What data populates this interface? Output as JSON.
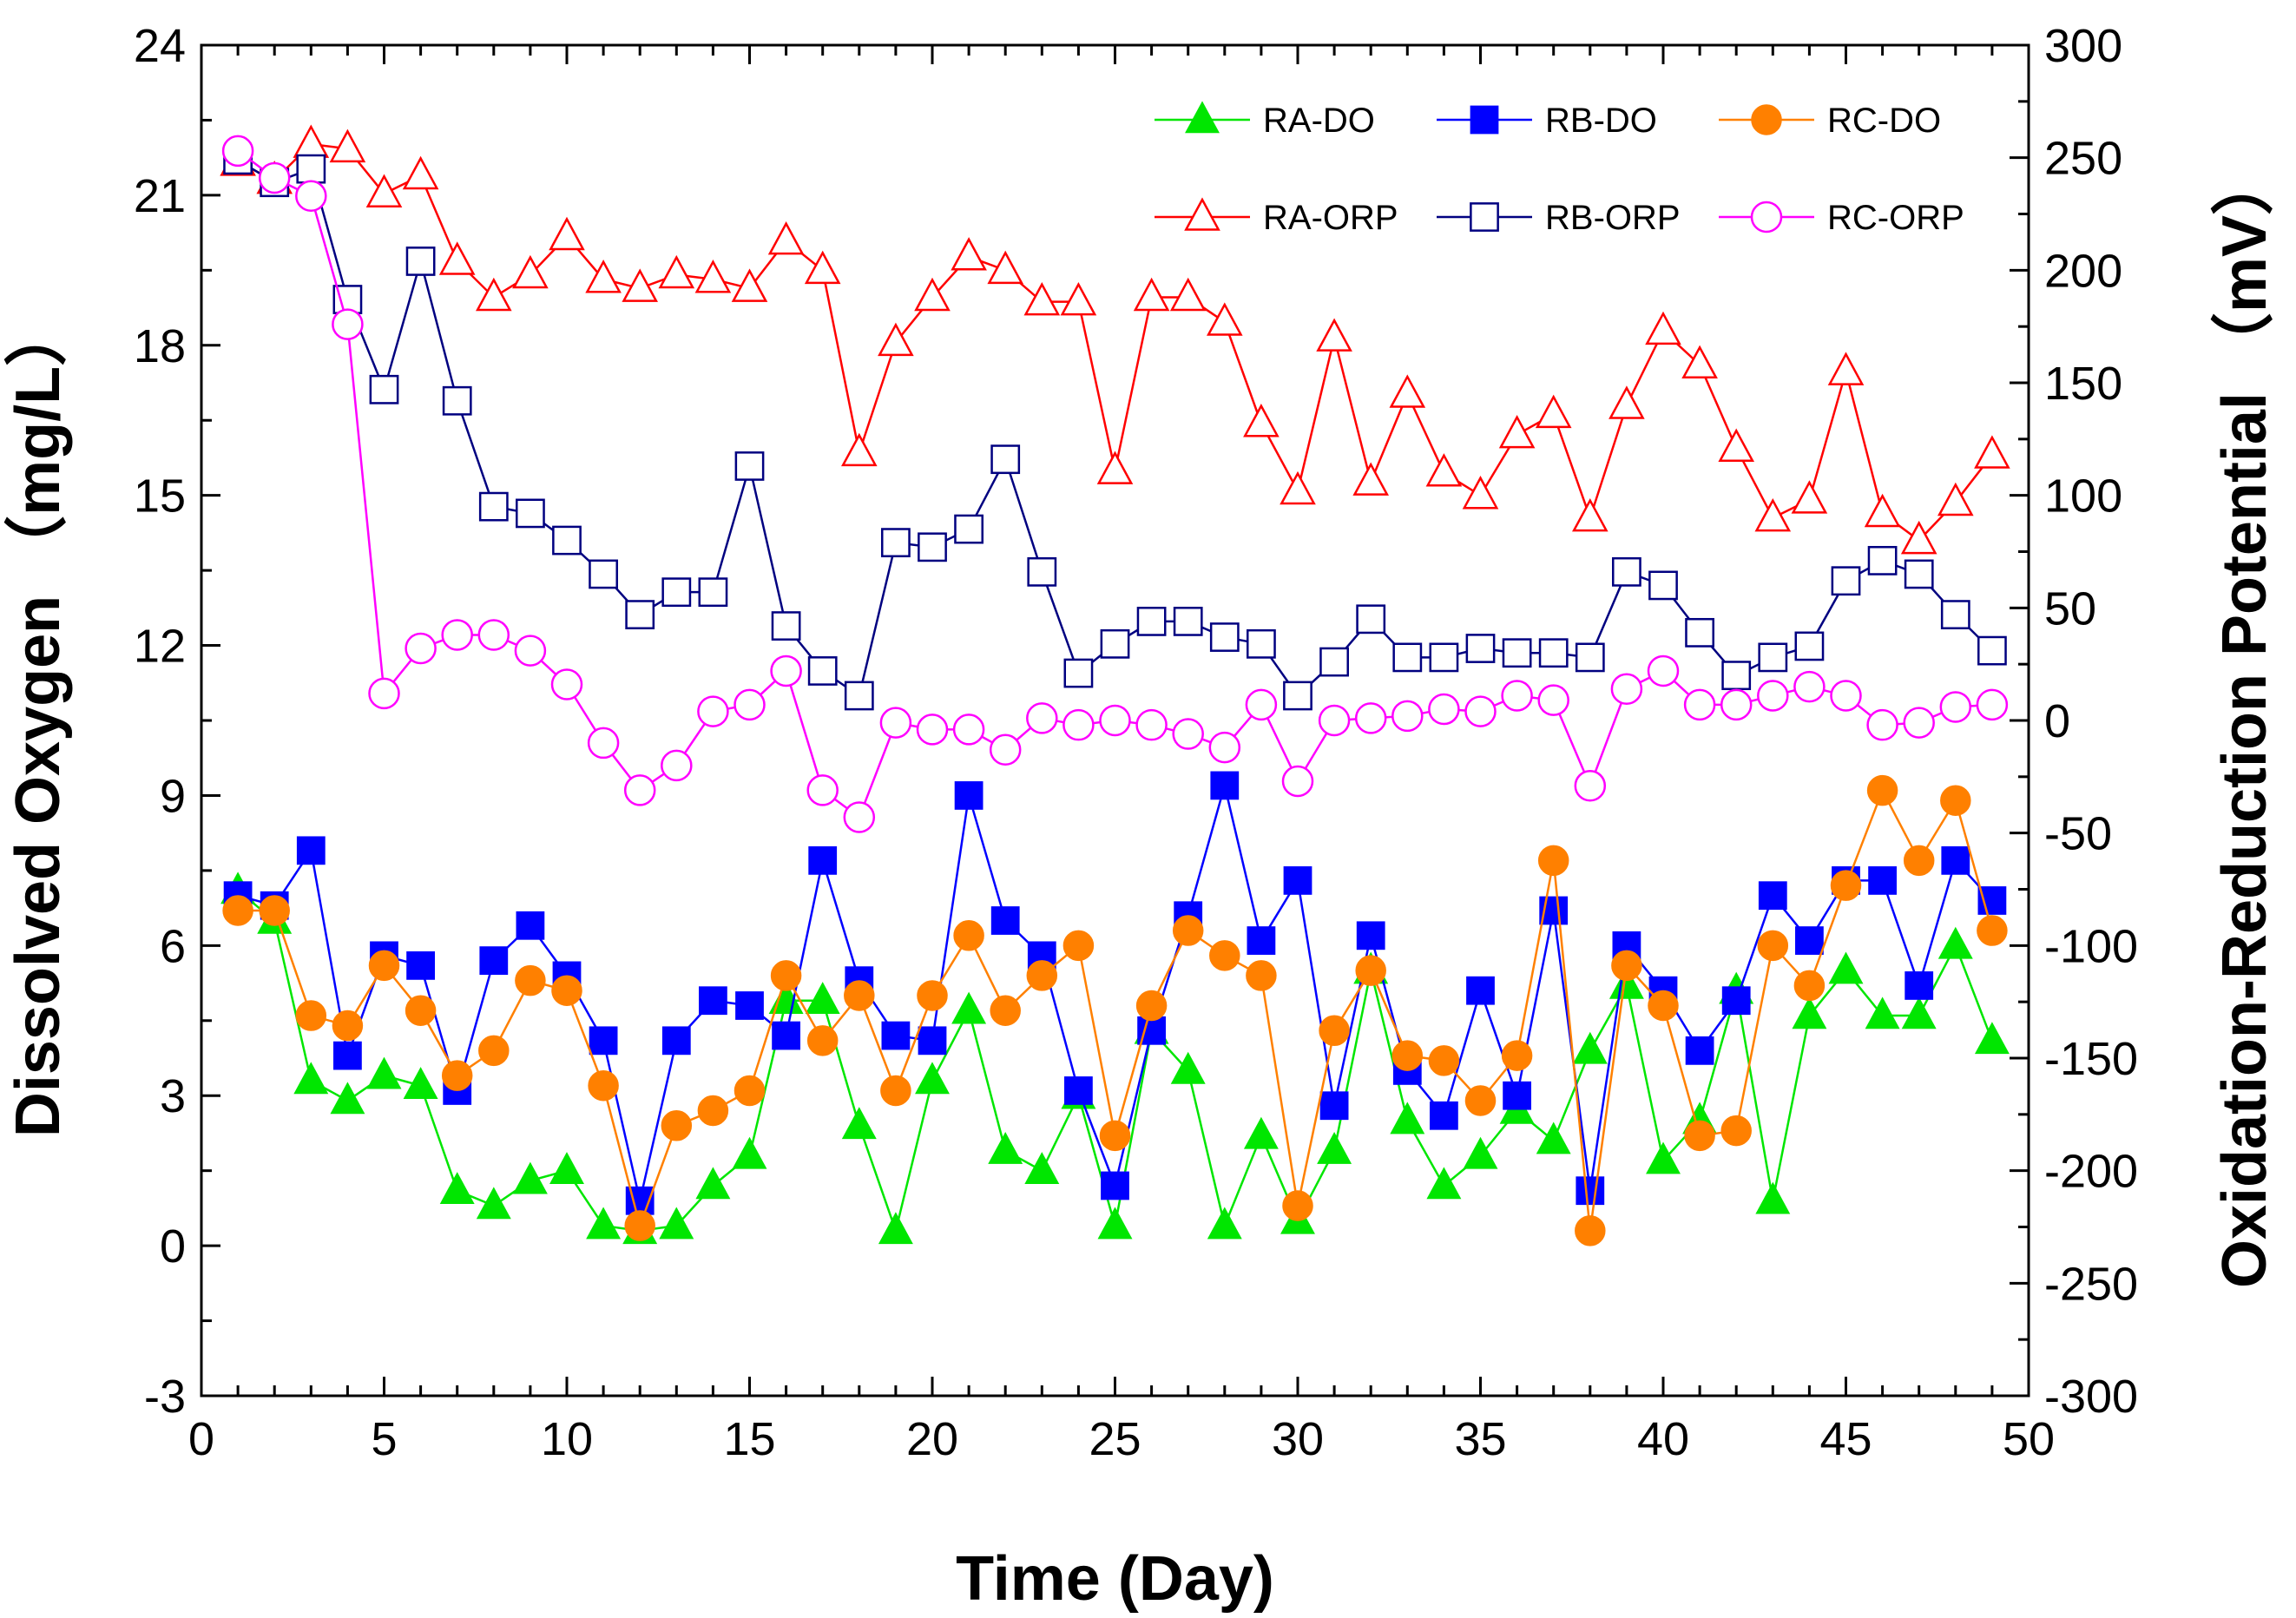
{
  "chart_data": {
    "type": "line",
    "xlabel": "Time (Day)",
    "ylabel_left": "Dissolved Oxygen （mg/L）",
    "ylabel_right": "Oxidation-Reduction Potential （mV）",
    "xlim": [
      0,
      50
    ],
    "ylim_left": [
      -3,
      24
    ],
    "ylim_right": [
      -300,
      300
    ],
    "xticks": [
      0,
      5,
      10,
      15,
      20,
      25,
      30,
      35,
      40,
      45,
      50
    ],
    "yticks_left": [
      -3,
      0,
      3,
      6,
      9,
      12,
      15,
      18,
      21,
      24
    ],
    "yticks_right": [
      -300,
      -250,
      -200,
      -150,
      -100,
      -50,
      0,
      50,
      100,
      150,
      200,
      250,
      300
    ],
    "grid": false,
    "legend_position": "top-right",
    "x": [
      1,
      2,
      3,
      4,
      5,
      6,
      7,
      8,
      9,
      10,
      11,
      12,
      13,
      14,
      15,
      16,
      17,
      18,
      19,
      20,
      21,
      22,
      23,
      24,
      25,
      26,
      27,
      28,
      29,
      30,
      31,
      32,
      33,
      34,
      35,
      36,
      37,
      38,
      39,
      40,
      41,
      42,
      43,
      44,
      45,
      46,
      47,
      48,
      49
    ],
    "series": [
      {
        "name": "RA-DO",
        "axis": "left",
        "color": "#00e600",
        "marker": "triangle",
        "filled": true,
        "values": [
          7.1,
          6.5,
          3.3,
          2.9,
          3.4,
          3.2,
          1.1,
          0.8,
          1.3,
          1.5,
          0.4,
          0.3,
          0.4,
          1.2,
          1.8,
          4.9,
          4.9,
          2.4,
          0.3,
          3.3,
          4.7,
          1.9,
          1.5,
          3.0,
          0.4,
          4.3,
          3.5,
          0.4,
          2.2,
          0.5,
          1.9,
          5.5,
          2.5,
          1.2,
          1.8,
          2.7,
          2.1,
          3.9,
          5.2,
          1.7,
          2.5,
          5.1,
          0.9,
          4.6,
          5.5,
          4.6,
          4.6,
          6.0,
          4.1
        ]
      },
      {
        "name": "RB-DO",
        "axis": "left",
        "color": "#0000ff",
        "marker": "square",
        "filled": true,
        "values": [
          7.0,
          6.8,
          7.9,
          3.8,
          5.8,
          5.6,
          3.1,
          5.7,
          6.4,
          5.4,
          4.1,
          0.9,
          4.1,
          4.9,
          4.8,
          4.2,
          7.7,
          5.3,
          4.2,
          4.1,
          9.0,
          6.5,
          5.8,
          3.1,
          1.2,
          4.3,
          6.6,
          9.2,
          6.1,
          7.3,
          2.8,
          6.2,
          3.5,
          2.6,
          5.1,
          3.0,
          6.7,
          1.1,
          6.0,
          5.1,
          3.9,
          4.9,
          7.0,
          6.1,
          7.3,
          7.3,
          5.2,
          7.7,
          6.9
        ]
      },
      {
        "name": "RC-DO",
        "axis": "left",
        "color": "#ff8000",
        "marker": "circle",
        "filled": true,
        "values": [
          6.7,
          6.7,
          4.6,
          4.4,
          5.6,
          4.7,
          3.4,
          3.9,
          5.3,
          5.1,
          3.2,
          0.4,
          2.4,
          2.7,
          3.1,
          5.4,
          4.1,
          5.0,
          3.1,
          5.0,
          6.2,
          4.7,
          5.4,
          6.0,
          2.2,
          4.8,
          6.3,
          5.8,
          5.4,
          0.8,
          4.3,
          5.5,
          3.8,
          3.7,
          2.9,
          3.8,
          7.7,
          0.3,
          5.6,
          4.8,
          2.2,
          2.3,
          6.0,
          5.2,
          7.2,
          9.1,
          7.7,
          8.9,
          6.3
        ]
      },
      {
        "name": "RA-ORP",
        "axis": "right",
        "color": "#ff0000",
        "marker": "triangle",
        "filled": false,
        "values": [
          248,
          240,
          256,
          254,
          234,
          242,
          204,
          188,
          198,
          215,
          196,
          192,
          198,
          196,
          192,
          213,
          200,
          119,
          168,
          188,
          206,
          200,
          186,
          186,
          111,
          188,
          188,
          177,
          132,
          102,
          170,
          106,
          145,
          110,
          100,
          127,
          136,
          90,
          140,
          173,
          158,
          121,
          90,
          98,
          155,
          92,
          80,
          97,
          118
        ]
      },
      {
        "name": "RB-ORP",
        "axis": "right",
        "color": "#000080",
        "marker": "square",
        "filled": false,
        "values": [
          249,
          239,
          245,
          187,
          147,
          204,
          142,
          95,
          92,
          80,
          65,
          47,
          57,
          57,
          113,
          42,
          22,
          11,
          79,
          77,
          85,
          116,
          66,
          21,
          34,
          44,
          44,
          37,
          34,
          11,
          26,
          45,
          28,
          28,
          32,
          30,
          30,
          28,
          66,
          60,
          39,
          20,
          28,
          33,
          62,
          71,
          65,
          47,
          31
        ]
      },
      {
        "name": "RC-ORP",
        "axis": "right",
        "color": "#ff00ff",
        "marker": "circle",
        "filled": false,
        "values": [
          253,
          241,
          233,
          176,
          12,
          32,
          38,
          38,
          31,
          16,
          -10,
          -31,
          -20,
          4,
          7,
          22,
          -31,
          -43,
          -1,
          -4,
          -4,
          -13,
          1,
          -2,
          0,
          -2,
          -6,
          -12,
          7,
          -27,
          0,
          1,
          2,
          5,
          4,
          11,
          9,
          -29,
          14,
          22,
          7,
          7,
          11,
          15,
          11,
          -2,
          -1,
          6,
          7
        ]
      }
    ]
  }
}
